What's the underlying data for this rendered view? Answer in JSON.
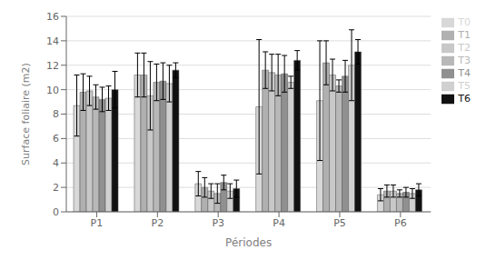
{
  "chart_data": {
    "type": "bar",
    "xlabel": "Périodes",
    "ylabel": "Surface foliaire (m2)",
    "categories": [
      "P1",
      "P2",
      "P3",
      "P4",
      "P5",
      "P6"
    ],
    "series": [
      {
        "name": "T0",
        "color": "#d8d8d8",
        "values": [
          8.7,
          11.2,
          2.3,
          8.6,
          9.1,
          1.4
        ],
        "errors": [
          2.5,
          1.8,
          1.0,
          5.5,
          4.9,
          0.5
        ]
      },
      {
        "name": "T1",
        "color": "#b0b0b0",
        "values": [
          9.8,
          11.2,
          2.0,
          11.6,
          12.2,
          1.7
        ],
        "errors": [
          1.5,
          1.8,
          0.8,
          1.5,
          1.8,
          0.5
        ]
      },
      {
        "name": "T2",
        "color": "#c8c8c8",
        "values": [
          9.9,
          9.5,
          1.7,
          11.4,
          11.2,
          1.7
        ],
        "errors": [
          1.2,
          2.8,
          0.6,
          1.5,
          1.3,
          0.5
        ]
      },
      {
        "name": "T3",
        "color": "#b8b8b8",
        "values": [
          9.4,
          10.6,
          1.5,
          11.2,
          10.3,
          1.5
        ],
        "errors": [
          1.0,
          1.5,
          0.8,
          1.7,
          0.5,
          0.3
        ]
      },
      {
        "name": "T4",
        "color": "#909090",
        "values": [
          9.2,
          10.7,
          2.4,
          11.3,
          11.1,
          1.6
        ],
        "errors": [
          1.0,
          1.5,
          0.6,
          1.5,
          1.3,
          0.4
        ]
      },
      {
        "name": "T5",
        "color": "#d0d0d0",
        "values": [
          9.3,
          10.5,
          1.7,
          10.6,
          12.0,
          1.5
        ],
        "errors": [
          1.0,
          1.5,
          0.6,
          0.5,
          2.9,
          0.4
        ]
      },
      {
        "name": "T6",
        "color": "#111111",
        "values": [
          10.0,
          11.6,
          1.9,
          12.4,
          13.1,
          1.8
        ],
        "errors": [
          1.5,
          0.6,
          0.7,
          0.8,
          1.0,
          0.5
        ]
      }
    ],
    "ylim": [
      0,
      16
    ],
    "yticks": [
      0,
      2,
      4,
      6,
      8,
      10,
      12,
      14,
      16
    ],
    "grid": true,
    "legend": "right"
  }
}
